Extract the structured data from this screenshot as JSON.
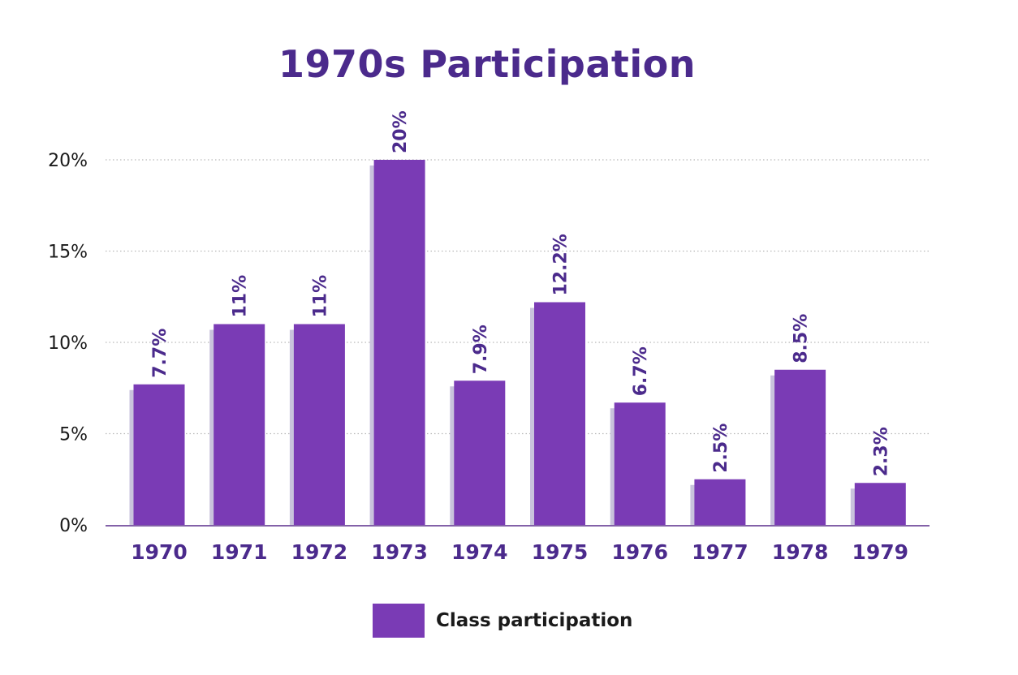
{
  "chart_data": {
    "type": "bar",
    "title": "1970s Participation",
    "categories": [
      "1970",
      "1971",
      "1972",
      "1973",
      "1974",
      "1975",
      "1976",
      "1977",
      "1978",
      "1979"
    ],
    "series": [
      {
        "name": "Class participation",
        "values": [
          7.7,
          11,
          11,
          20,
          7.9,
          12.2,
          6.7,
          2.5,
          8.5,
          2.3
        ],
        "labels": [
          "7.7%",
          "11%",
          "11%",
          "20%",
          "7.9%",
          "12.2%",
          "6.7%",
          "2.5%",
          "8.5%",
          "2.3%"
        ]
      }
    ],
    "y_ticks": [
      0,
      5,
      10,
      15,
      20
    ],
    "y_tick_labels": [
      "0%",
      "5%",
      "10%",
      "15%",
      "20%"
    ],
    "ylim": [
      0,
      20
    ],
    "xlabel": "",
    "ylabel": "",
    "grid": true,
    "legend_position": "bottom-center",
    "colors": {
      "bar": "#7a3bb5",
      "bar_shadow": "#c9c3dc",
      "label": "#4b2a8c",
      "tick_text": "#1a1a1a",
      "grid": "#b9b9b9",
      "axis": "#5a2d8c"
    }
  }
}
